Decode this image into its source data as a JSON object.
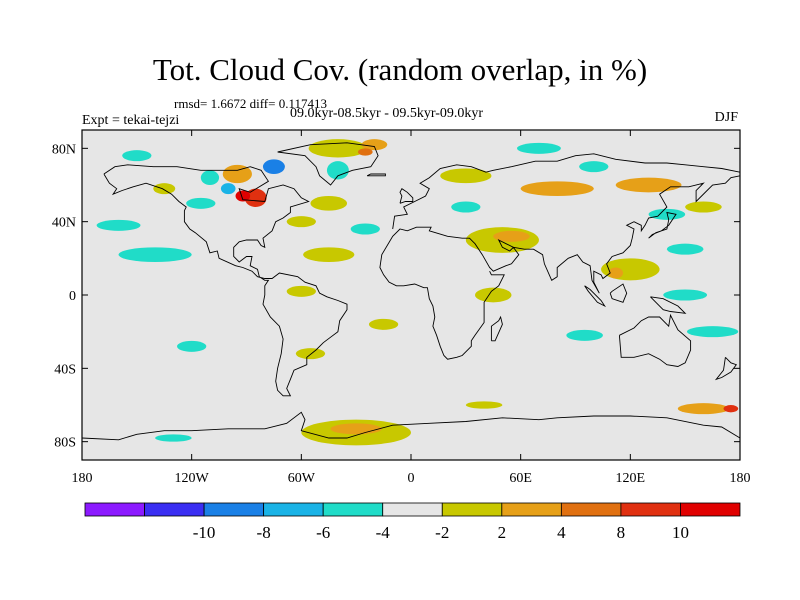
{
  "title": "Tot. Cloud Cov. (random overlap, in %)",
  "stats": "rmsd= 1.6672 diff= 0.117413",
  "experiment": "Expt = tekai-tejzi",
  "period": "09.0kyr-08.5kyr - 09.5kyr-09.0kyr",
  "season": "DJF",
  "map": {
    "projection": "cylindrical equidistant",
    "lon_range": [
      -180,
      180
    ],
    "lat_range": [
      -90,
      90
    ],
    "xticks": [
      "180",
      "120W",
      "60W",
      "0",
      "60E",
      "120E",
      "180"
    ],
    "yticks": [
      "80N",
      "40N",
      "0",
      "40S",
      "80S"
    ],
    "ytick_values": [
      80,
      40,
      0,
      -40,
      -80
    ],
    "background_color": "#e6e6e6",
    "coastline_color": "#000000"
  },
  "colorbar": {
    "colors": [
      "#8c1aff",
      "#3a2ef2",
      "#1a80e6",
      "#1ab3e6",
      "#20dcc8",
      "#e6e6e6",
      "#c8c800",
      "#e6a018",
      "#e07010",
      "#e03010",
      "#e00000"
    ],
    "labels": [
      "-10",
      "-8",
      "-6",
      "-4",
      "-2",
      "2",
      "4",
      "8",
      "10"
    ]
  },
  "anomaly_patches": [
    {
      "lon": -85,
      "lat": 53,
      "rx": 6,
      "ry": 5,
      "color": "#e03010"
    },
    {
      "lon": -92,
      "lat": 54,
      "rx": 4,
      "ry": 3,
      "color": "#e00000"
    },
    {
      "lon": -95,
      "lat": 66,
      "rx": 8,
      "ry": 5,
      "color": "#e6a018"
    },
    {
      "lon": -75,
      "lat": 70,
      "rx": 6,
      "ry": 4,
      "color": "#1a80e6"
    },
    {
      "lon": -100,
      "lat": 58,
      "rx": 4,
      "ry": 3,
      "color": "#1ab3e6"
    },
    {
      "lon": -110,
      "lat": 64,
      "rx": 5,
      "ry": 4,
      "color": "#20dcc8"
    },
    {
      "lon": -40,
      "lat": 80,
      "rx": 16,
      "ry": 5,
      "color": "#c8c800"
    },
    {
      "lon": -20,
      "lat": 82,
      "rx": 7,
      "ry": 3,
      "color": "#e6a018"
    },
    {
      "lon": -25,
      "lat": 78,
      "rx": 4,
      "ry": 2,
      "color": "#e07010"
    },
    {
      "lon": -40,
      "lat": 68,
      "rx": 6,
      "ry": 5,
      "color": "#20dcc8"
    },
    {
      "lon": -115,
      "lat": 50,
      "rx": 8,
      "ry": 3,
      "color": "#20dcc8"
    },
    {
      "lon": -150,
      "lat": 76,
      "rx": 8,
      "ry": 3,
      "color": "#20dcc8"
    },
    {
      "lon": -135,
      "lat": 58,
      "rx": 6,
      "ry": 3,
      "color": "#c8c800"
    },
    {
      "lon": -160,
      "lat": 38,
      "rx": 12,
      "ry": 3,
      "color": "#20dcc8"
    },
    {
      "lon": -45,
      "lat": 50,
      "rx": 10,
      "ry": 4,
      "color": "#c8c800"
    },
    {
      "lon": -60,
      "lat": 40,
      "rx": 8,
      "ry": 3,
      "color": "#c8c800"
    },
    {
      "lon": -25,
      "lat": 36,
      "rx": 8,
      "ry": 3,
      "color": "#20dcc8"
    },
    {
      "lon": -140,
      "lat": 22,
      "rx": 20,
      "ry": 4,
      "color": "#20dcc8"
    },
    {
      "lon": -45,
      "lat": 22,
      "rx": 14,
      "ry": 4,
      "color": "#c8c800"
    },
    {
      "lon": -60,
      "lat": 2,
      "rx": 8,
      "ry": 3,
      "color": "#c8c800"
    },
    {
      "lon": -15,
      "lat": -16,
      "rx": 8,
      "ry": 3,
      "color": "#c8c800"
    },
    {
      "lon": 50,
      "lat": 30,
      "rx": 20,
      "ry": 7,
      "color": "#c8c800"
    },
    {
      "lon": 55,
      "lat": 32,
      "rx": 10,
      "ry": 3,
      "color": "#e6a018"
    },
    {
      "lon": 120,
      "lat": 14,
      "rx": 16,
      "ry": 6,
      "color": "#c8c800"
    },
    {
      "lon": 112,
      "lat": 12,
      "rx": 4,
      "ry": 3,
      "color": "#e6a018"
    },
    {
      "lon": 45,
      "lat": 0,
      "rx": 10,
      "ry": 4,
      "color": "#c8c800"
    },
    {
      "lon": 30,
      "lat": 65,
      "rx": 14,
      "ry": 4,
      "color": "#c8c800"
    },
    {
      "lon": 80,
      "lat": 58,
      "rx": 20,
      "ry": 4,
      "color": "#e6a018"
    },
    {
      "lon": 70,
      "lat": 80,
      "rx": 12,
      "ry": 3,
      "color": "#20dcc8"
    },
    {
      "lon": 130,
      "lat": 60,
      "rx": 18,
      "ry": 4,
      "color": "#e6a018"
    },
    {
      "lon": 100,
      "lat": 70,
      "rx": 8,
      "ry": 3,
      "color": "#20dcc8"
    },
    {
      "lon": 30,
      "lat": 48,
      "rx": 8,
      "ry": 3,
      "color": "#20dcc8"
    },
    {
      "lon": 140,
      "lat": 44,
      "rx": 10,
      "ry": 3,
      "color": "#20dcc8"
    },
    {
      "lon": 160,
      "lat": 48,
      "rx": 10,
      "ry": 3,
      "color": "#c8c800"
    },
    {
      "lon": 150,
      "lat": 25,
      "rx": 10,
      "ry": 3,
      "color": "#20dcc8"
    },
    {
      "lon": 150,
      "lat": 0,
      "rx": 12,
      "ry": 3,
      "color": "#20dcc8"
    },
    {
      "lon": 165,
      "lat": -20,
      "rx": 14,
      "ry": 3,
      "color": "#20dcc8"
    },
    {
      "lon": 95,
      "lat": -22,
      "rx": 10,
      "ry": 3,
      "color": "#20dcc8"
    },
    {
      "lon": -120,
      "lat": -28,
      "rx": 8,
      "ry": 3,
      "color": "#20dcc8"
    },
    {
      "lon": -55,
      "lat": -32,
      "rx": 8,
      "ry": 3,
      "color": "#c8c800"
    },
    {
      "lon": -30,
      "lat": -75,
      "rx": 30,
      "ry": 7,
      "color": "#c8c800"
    },
    {
      "lon": -30,
      "lat": -73,
      "rx": 14,
      "ry": 3,
      "color": "#e6a018"
    },
    {
      "lon": -130,
      "lat": -78,
      "rx": 10,
      "ry": 2,
      "color": "#20dcc8"
    },
    {
      "lon": 40,
      "lat": -60,
      "rx": 10,
      "ry": 2,
      "color": "#c8c800"
    },
    {
      "lon": 160,
      "lat": -62,
      "rx": 14,
      "ry": 3,
      "color": "#e6a018"
    },
    {
      "lon": 175,
      "lat": -62,
      "rx": 4,
      "ry": 2,
      "color": "#e03010"
    }
  ],
  "coastlines": [
    [
      [
        -168,
        66
      ],
      [
        -162,
        70
      ],
      [
        -155,
        71
      ],
      [
        -141,
        70
      ],
      [
        -128,
        70
      ],
      [
        -115,
        68
      ],
      [
        -95,
        68
      ],
      [
        -88,
        70
      ],
      [
        -82,
        68
      ],
      [
        -78,
        62
      ],
      [
        -88,
        56
      ],
      [
        -94,
        58
      ],
      [
        -92,
        52
      ],
      [
        -80,
        51
      ],
      [
        -78,
        58
      ],
      [
        -70,
        60
      ],
      [
        -64,
        58
      ],
      [
        -60,
        53
      ],
      [
        -56,
        51
      ],
      [
        -66,
        48
      ],
      [
        -66,
        45
      ],
      [
        -70,
        42
      ],
      [
        -74,
        40
      ],
      [
        -76,
        35
      ],
      [
        -81,
        31
      ],
      [
        -80,
        26
      ],
      [
        -82,
        27
      ],
      [
        -84,
        30
      ],
      [
        -90,
        30
      ],
      [
        -94,
        29
      ],
      [
        -97,
        26
      ],
      [
        -97,
        21
      ],
      [
        -94,
        18
      ],
      [
        -90,
        21
      ],
      [
        -87,
        21
      ],
      [
        -88,
        16
      ],
      [
        -84,
        14
      ],
      [
        -83,
        10
      ],
      [
        -80,
        8
      ],
      [
        -78,
        8
      ],
      [
        -80,
        5
      ],
      [
        -80,
        0
      ],
      [
        -81,
        -5
      ],
      [
        -77,
        -12
      ],
      [
        -72,
        -17
      ],
      [
        -70,
        -24
      ],
      [
        -71,
        -32
      ],
      [
        -73,
        -40
      ],
      [
        -74,
        -47
      ],
      [
        -73,
        -52
      ],
      [
        -70,
        -55
      ],
      [
        -66,
        -55
      ],
      [
        -68,
        -51
      ],
      [
        -66,
        -46
      ],
      [
        -64,
        -41
      ],
      [
        -57,
        -38
      ],
      [
        -57,
        -34
      ],
      [
        -52,
        -30
      ],
      [
        -48,
        -26
      ],
      [
        -44,
        -23
      ],
      [
        -40,
        -20
      ],
      [
        -39,
        -14
      ],
      [
        -35,
        -8
      ],
      [
        -35,
        -5
      ],
      [
        -40,
        -3
      ],
      [
        -46,
        -1
      ],
      [
        -50,
        1
      ],
      [
        -52,
        5
      ],
      [
        -58,
        7
      ],
      [
        -62,
        10
      ],
      [
        -72,
        12
      ],
      [
        -76,
        9
      ],
      [
        -78,
        9
      ],
      [
        -80,
        9
      ],
      [
        -84,
        10
      ],
      [
        -87,
        13
      ],
      [
        -92,
        15
      ],
      [
        -96,
        16
      ],
      [
        -105,
        20
      ],
      [
        -106,
        24
      ],
      [
        -110,
        23
      ],
      [
        -112,
        29
      ],
      [
        -118,
        34
      ],
      [
        -121,
        36
      ],
      [
        -124,
        40
      ],
      [
        -124,
        46
      ],
      [
        -123,
        48
      ],
      [
        -127,
        51
      ],
      [
        -131,
        55
      ],
      [
        -136,
        58
      ],
      [
        -145,
        61
      ],
      [
        -152,
        59
      ],
      [
        -158,
        57
      ],
      [
        -163,
        55
      ],
      [
        -161,
        58
      ],
      [
        -165,
        61
      ],
      [
        -168,
        66
      ]
    ],
    [
      [
        -73,
        78
      ],
      [
        -58,
        76
      ],
      [
        -52,
        70
      ],
      [
        -50,
        65
      ],
      [
        -44,
        60
      ],
      [
        -40,
        65
      ],
      [
        -32,
        68
      ],
      [
        -22,
        70
      ],
      [
        -18,
        76
      ],
      [
        -20,
        81
      ],
      [
        -35,
        83
      ],
      [
        -55,
        82
      ],
      [
        -73,
        78
      ]
    ],
    [
      [
        -10,
        36
      ],
      [
        -9,
        43
      ],
      [
        -2,
        44
      ],
      [
        -4,
        48
      ],
      [
        2,
        51
      ],
      [
        8,
        54
      ],
      [
        10,
        58
      ],
      [
        5,
        61
      ],
      [
        10,
        64
      ],
      [
        16,
        69
      ],
      [
        25,
        71
      ],
      [
        33,
        70
      ],
      [
        41,
        67
      ],
      [
        45,
        68
      ],
      [
        55,
        70
      ],
      [
        68,
        73
      ],
      [
        80,
        73
      ],
      [
        90,
        76
      ],
      [
        100,
        77
      ],
      [
        112,
        74
      ],
      [
        128,
        72
      ],
      [
        140,
        72
      ],
      [
        150,
        71
      ],
      [
        160,
        70
      ],
      [
        170,
        69
      ],
      [
        180,
        67
      ]
    ],
    [
      [
        180,
        65
      ],
      [
        175,
        64
      ],
      [
        172,
        61
      ],
      [
        165,
        60
      ],
      [
        162,
        57
      ],
      [
        156,
        51
      ],
      [
        156,
        57
      ],
      [
        160,
        61
      ],
      [
        152,
        59
      ],
      [
        142,
        59
      ],
      [
        136,
        55
      ],
      [
        140,
        48
      ],
      [
        135,
        43
      ],
      [
        130,
        42
      ],
      [
        128,
        38
      ],
      [
        126,
        35
      ],
      [
        126,
        38
      ],
      [
        122,
        40
      ],
      [
        118,
        38
      ],
      [
        122,
        36
      ],
      [
        121,
        31
      ],
      [
        120,
        27
      ],
      [
        116,
        23
      ],
      [
        110,
        21
      ],
      [
        107,
        17
      ],
      [
        109,
        12
      ],
      [
        105,
        9
      ],
      [
        104,
        11
      ],
      [
        100,
        13
      ],
      [
        100,
        7
      ],
      [
        103,
        1
      ],
      [
        99,
        8
      ],
      [
        98,
        16
      ],
      [
        94,
        18
      ],
      [
        91,
        22
      ],
      [
        86,
        20
      ],
      [
        80,
        15
      ],
      [
        80,
        10
      ],
      [
        77,
        8
      ],
      [
        73,
        17
      ],
      [
        72,
        22
      ],
      [
        67,
        25
      ],
      [
        62,
        25
      ],
      [
        56,
        26
      ],
      [
        52,
        28
      ],
      [
        48,
        30
      ],
      [
        50,
        26
      ],
      [
        54,
        24
      ],
      [
        56,
        26
      ],
      [
        59,
        22
      ],
      [
        55,
        17
      ],
      [
        52,
        16
      ],
      [
        45,
        13
      ],
      [
        43,
        15
      ],
      [
        39,
        22
      ],
      [
        35,
        28
      ],
      [
        34,
        29
      ],
      [
        32,
        31
      ],
      [
        28,
        31
      ],
      [
        20,
        32
      ],
      [
        10,
        35
      ],
      [
        11,
        37
      ],
      [
        3,
        37
      ],
      [
        -2,
        35
      ],
      [
        -6,
        36
      ],
      [
        -10,
        32
      ],
      [
        -16,
        22
      ],
      [
        -17,
        15
      ],
      [
        -15,
        11
      ],
      [
        -12,
        7
      ],
      [
        -8,
        5
      ],
      [
        -4,
        5
      ],
      [
        2,
        6
      ],
      [
        7,
        4
      ],
      [
        9,
        4
      ],
      [
        10,
        -2
      ],
      [
        12,
        -6
      ],
      [
        13,
        -12
      ],
      [
        12,
        -17
      ],
      [
        14,
        -22
      ],
      [
        16,
        -28
      ],
      [
        18,
        -33
      ],
      [
        20,
        -35
      ],
      [
        25,
        -34
      ],
      [
        28,
        -33
      ],
      [
        33,
        -28
      ],
      [
        33,
        -25
      ],
      [
        35,
        -22
      ],
      [
        40,
        -15
      ],
      [
        40,
        -10
      ],
      [
        40,
        -4
      ],
      [
        44,
        2
      ],
      [
        48,
        5
      ],
      [
        51,
        11
      ],
      [
        44,
        11
      ],
      [
        43,
        13
      ]
    ],
    [
      [
        44,
        -25
      ],
      [
        46,
        -25
      ],
      [
        50,
        -16
      ],
      [
        49,
        -12
      ],
      [
        48,
        -14
      ],
      [
        44,
        -17
      ],
      [
        44,
        -25
      ]
    ],
    [
      [
        114,
        -22
      ],
      [
        115,
        -34
      ],
      [
        122,
        -34
      ],
      [
        130,
        -32
      ],
      [
        136,
        -35
      ],
      [
        140,
        -38
      ],
      [
        146,
        -39
      ],
      [
        150,
        -37
      ],
      [
        153,
        -30
      ],
      [
        153,
        -25
      ],
      [
        146,
        -19
      ],
      [
        142,
        -11
      ],
      [
        141,
        -17
      ],
      [
        136,
        -12
      ],
      [
        130,
        -12
      ],
      [
        126,
        -14
      ],
      [
        122,
        -18
      ],
      [
        114,
        -22
      ]
    ],
    [
      [
        95,
        5
      ],
      [
        98,
        3
      ],
      [
        104,
        -3
      ],
      [
        106,
        -6
      ],
      [
        102,
        -4
      ],
      [
        97,
        2
      ],
      [
        95,
        5
      ]
    ],
    [
      [
        109,
        1
      ],
      [
        110,
        -2
      ],
      [
        116,
        -4
      ],
      [
        118,
        1
      ],
      [
        116,
        6
      ],
      [
        110,
        2
      ],
      [
        109,
        1
      ]
    ],
    [
      [
        131,
        -1
      ],
      [
        138,
        -2
      ],
      [
        146,
        -6
      ],
      [
        150,
        -10
      ],
      [
        142,
        -9
      ],
      [
        138,
        -8
      ],
      [
        131,
        -1
      ]
    ],
    [
      [
        130,
        31
      ],
      [
        134,
        34
      ],
      [
        140,
        36
      ],
      [
        141,
        41
      ],
      [
        140,
        45
      ],
      [
        145,
        44
      ],
      [
        141,
        38
      ],
      [
        137,
        35
      ],
      [
        132,
        33
      ],
      [
        130,
        31
      ]
    ],
    [
      [
        172,
        -34
      ],
      [
        175,
        -37
      ],
      [
        178,
        -38
      ],
      [
        175,
        -42
      ],
      [
        170,
        -45
      ],
      [
        167,
        -46
      ],
      [
        171,
        -41
      ],
      [
        172,
        -34
      ]
    ],
    [
      [
        -6,
        50
      ],
      [
        -3,
        51
      ],
      [
        1,
        51
      ],
      [
        1,
        53
      ],
      [
        -2,
        56
      ],
      [
        -5,
        58
      ],
      [
        -6,
        56
      ],
      [
        -5,
        54
      ],
      [
        -6,
        50
      ]
    ],
    [
      [
        -24,
        65
      ],
      [
        -14,
        65
      ],
      [
        -14,
        66
      ],
      [
        -22,
        66
      ],
      [
        -24,
        65
      ]
    ],
    [
      [
        -180,
        -78
      ],
      [
        -160,
        -79
      ],
      [
        -150,
        -76
      ],
      [
        -135,
        -74
      ],
      [
        -120,
        -74
      ],
      [
        -100,
        -73
      ],
      [
        -80,
        -73
      ],
      [
        -68,
        -70
      ],
      [
        -60,
        -64
      ],
      [
        -58,
        -68
      ],
      [
        -60,
        -74
      ],
      [
        -45,
        -78
      ],
      [
        -35,
        -78
      ],
      [
        -25,
        -75
      ],
      [
        -10,
        -71
      ],
      [
        10,
        -70
      ],
      [
        30,
        -69
      ],
      [
        50,
        -67
      ],
      [
        70,
        -68
      ],
      [
        80,
        -67
      ],
      [
        100,
        -66
      ],
      [
        120,
        -66
      ],
      [
        140,
        -67
      ],
      [
        160,
        -71
      ],
      [
        170,
        -72
      ],
      [
        180,
        -78
      ]
    ]
  ]
}
